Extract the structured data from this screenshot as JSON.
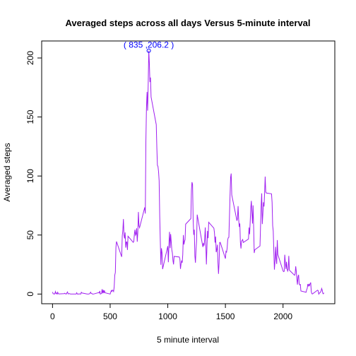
{
  "chart_data": {
    "type": "line",
    "title": "Averaged steps across all days Versus 5-minute interval",
    "x_label": "5 minute interval",
    "y_label": "Averaged steps",
    "x": [
      0,
      5,
      10,
      15,
      20,
      25,
      30,
      35,
      40,
      45,
      50,
      55,
      100,
      105,
      110,
      115,
      120,
      125,
      130,
      135,
      140,
      145,
      150,
      155,
      200,
      205,
      210,
      215,
      220,
      225,
      230,
      235,
      240,
      245,
      250,
      255,
      300,
      305,
      310,
      315,
      320,
      325,
      330,
      335,
      340,
      345,
      350,
      355,
      400,
      405,
      410,
      415,
      420,
      425,
      430,
      435,
      440,
      445,
      450,
      455,
      500,
      505,
      510,
      515,
      520,
      525,
      530,
      535,
      540,
      545,
      550,
      555,
      600,
      605,
      610,
      615,
      620,
      625,
      630,
      635,
      640,
      645,
      650,
      655,
      700,
      705,
      710,
      715,
      720,
      725,
      730,
      735,
      740,
      745,
      750,
      755,
      800,
      805,
      810,
      815,
      820,
      825,
      830,
      835,
      840,
      845,
      850,
      855,
      900,
      905,
      910,
      915,
      920,
      925,
      930,
      935,
      940,
      945,
      950,
      955,
      1000,
      1005,
      1010,
      1015,
      1020,
      1025,
      1030,
      1035,
      1040,
      1045,
      1050,
      1055,
      1100,
      1105,
      1110,
      1115,
      1120,
      1125,
      1130,
      1135,
      1140,
      1145,
      1150,
      1155,
      1200,
      1205,
      1210,
      1215,
      1220,
      1225,
      1230,
      1235,
      1240,
      1245,
      1250,
      1255,
      1300,
      1305,
      1310,
      1315,
      1320,
      1325,
      1330,
      1335,
      1340,
      1345,
      1350,
      1355,
      1400,
      1405,
      1410,
      1415,
      1420,
      1425,
      1430,
      1435,
      1440,
      1445,
      1450,
      1455,
      1500,
      1505,
      1510,
      1515,
      1520,
      1525,
      1530,
      1535,
      1540,
      1545,
      1550,
      1555,
      1600,
      1605,
      1610,
      1615,
      1620,
      1625,
      1630,
      1635,
      1640,
      1645,
      1650,
      1655,
      1700,
      1705,
      1710,
      1715,
      1720,
      1725,
      1730,
      1735,
      1740,
      1745,
      1750,
      1755,
      1800,
      1805,
      1810,
      1815,
      1820,
      1825,
      1830,
      1835,
      1840,
      1845,
      1850,
      1855,
      1900,
      1905,
      1910,
      1915,
      1920,
      1925,
      1930,
      1935,
      1940,
      1945,
      1950,
      1955,
      2000,
      2005,
      2010,
      2015,
      2020,
      2025,
      2030,
      2035,
      2040,
      2045,
      2050,
      2055,
      2100,
      2105,
      2110,
      2115,
      2120,
      2125,
      2130,
      2135,
      2140,
      2145,
      2150,
      2155,
      2200,
      2205,
      2210,
      2215,
      2220,
      2225,
      2230,
      2235,
      2240,
      2245,
      2250,
      2255,
      2300,
      2305,
      2310,
      2315,
      2320,
      2325,
      2330,
      2335,
      2340,
      2345,
      2350,
      2355
    ],
    "series": [
      {
        "name": "Averaged steps",
        "color": "#a020f0",
        "values": [
          1.7,
          0.3,
          0.1,
          0.2,
          0.1,
          2.1,
          0.5,
          0.9,
          0,
          1.5,
          0.3,
          0.1,
          0.3,
          0.7,
          0.2,
          0.3,
          0,
          1.1,
          1.8,
          0.2,
          0.2,
          0.4,
          0.3,
          0,
          0,
          0,
          1.1,
          0,
          0,
          0.1,
          0,
          0.2,
          0,
          0,
          1.5,
          0.9,
          0,
          0,
          0,
          0,
          0.2,
          0.6,
          1.6,
          0.6,
          0.5,
          0.1,
          0,
          0,
          1.2,
          0.9,
          2.6,
          0,
          0.3,
          0.4,
          4.1,
          0.7,
          3.5,
          0.8,
          3.1,
          1.1,
          0,
          1.6,
          3,
          2.2,
          3.3,
          3,
          2.1,
          6.1,
          16,
          18.3,
          39.5,
          44.5,
          31.5,
          49.3,
          53.8,
          63.5,
          50,
          47.1,
          52.2,
          39.3,
          44,
          44.2,
          37.4,
          49,
          43.8,
          44.4,
          50.5,
          54.5,
          49.9,
          51,
          55.7,
          44.3,
          52.3,
          69.5,
          57.8,
          56.2,
          73.4,
          68.2,
          129.4,
          157.5,
          171.2,
          155.4,
          177.3,
          206.2,
          195.9,
          179.6,
          183.4,
          167,
          143.5,
          124,
          109.1,
          108.1,
          103.7,
          96,
          66.2,
          45.2,
          24.8,
          38.8,
          35,
          21.1,
          40.6,
          27,
          42.4,
          52.7,
          38.9,
          50.8,
          44.3,
          37.4,
          34.7,
          28.3,
          25.1,
          31.9,
          31.4,
          29.7,
          21.3,
          25.5,
          28.4,
          26.5,
          33.4,
          50,
          42,
          44.6,
          46,
          59.2,
          63.9,
          87.7,
          94.8,
          92.8,
          63.4,
          50.2,
          54.5,
          32.4,
          26.5,
          37.7,
          45.1,
          67.3,
          42.3,
          39.9,
          43.3,
          41,
          46.2,
          56.4,
          42.8,
          25.1,
          40,
          53.5,
          47.3,
          60.8,
          55.8,
          52,
          43.6,
          48.7,
          35.5,
          37.5,
          41.8,
          27.5,
          17.1,
          26.1,
          43.6,
          43.8,
          30,
          36.1,
          35.5,
          38.8,
          46,
          47.8,
          48.1,
          65.3,
          82.9,
          98.7,
          102.1,
          84,
          62.1,
          64.1,
          74.5,
          63.2,
          56.9,
          59.8,
          43.9,
          38.6,
          44.7,
          45.5,
          46.2,
          43.7,
          46.6,
          56.3,
          50.7,
          61.2,
          72.7,
          78.9,
          68.9,
          59.7,
          75.1,
          56.5,
          34.8,
          37.5,
          40.7,
          58,
          74.7,
          85.3,
          59.3,
          67.8,
          77.7,
          74.2,
          85.3,
          99.5,
          86.6,
          85.6,
          84.9,
          77.8,
          58,
          53.4,
          36.3,
          20.7,
          27.4,
          40,
          30.2,
          25.5,
          45.7,
          33.5,
          19.6,
          19,
          19.3,
          33.3,
          26.8,
          21.2,
          27.3,
          21.3,
          19.5,
          21.3,
          32.3,
          20.2,
          15.9,
          17.2,
          23.5,
          19.2,
          12.5,
          8,
          14.7,
          16.3,
          8.7,
          7.8,
          8.1,
          2.6,
          1.5,
          3.7,
          4.8,
          8.5,
          6.9,
          8.2,
          7.1,
          8.7,
          9.8,
          2.2,
          0.3,
          0.1,
          3.3,
          2.8,
          0,
          0.8,
          1,
          1.6,
          2.6,
          4.7,
          3.3,
          0.6,
          0.2,
          1.1
        ]
      }
    ],
    "annotation": {
      "x": 835,
      "y": 206.2,
      "text": "( 835 ,206.2 )",
      "color": "#0000ff"
    },
    "xlim": [
      -94.2,
      2449.2
    ],
    "ylim": [
      -8.2,
      214.4
    ],
    "xticks": [
      0,
      500,
      1000,
      1500,
      2000
    ],
    "yticks": [
      0,
      50,
      100,
      150,
      200
    ]
  }
}
